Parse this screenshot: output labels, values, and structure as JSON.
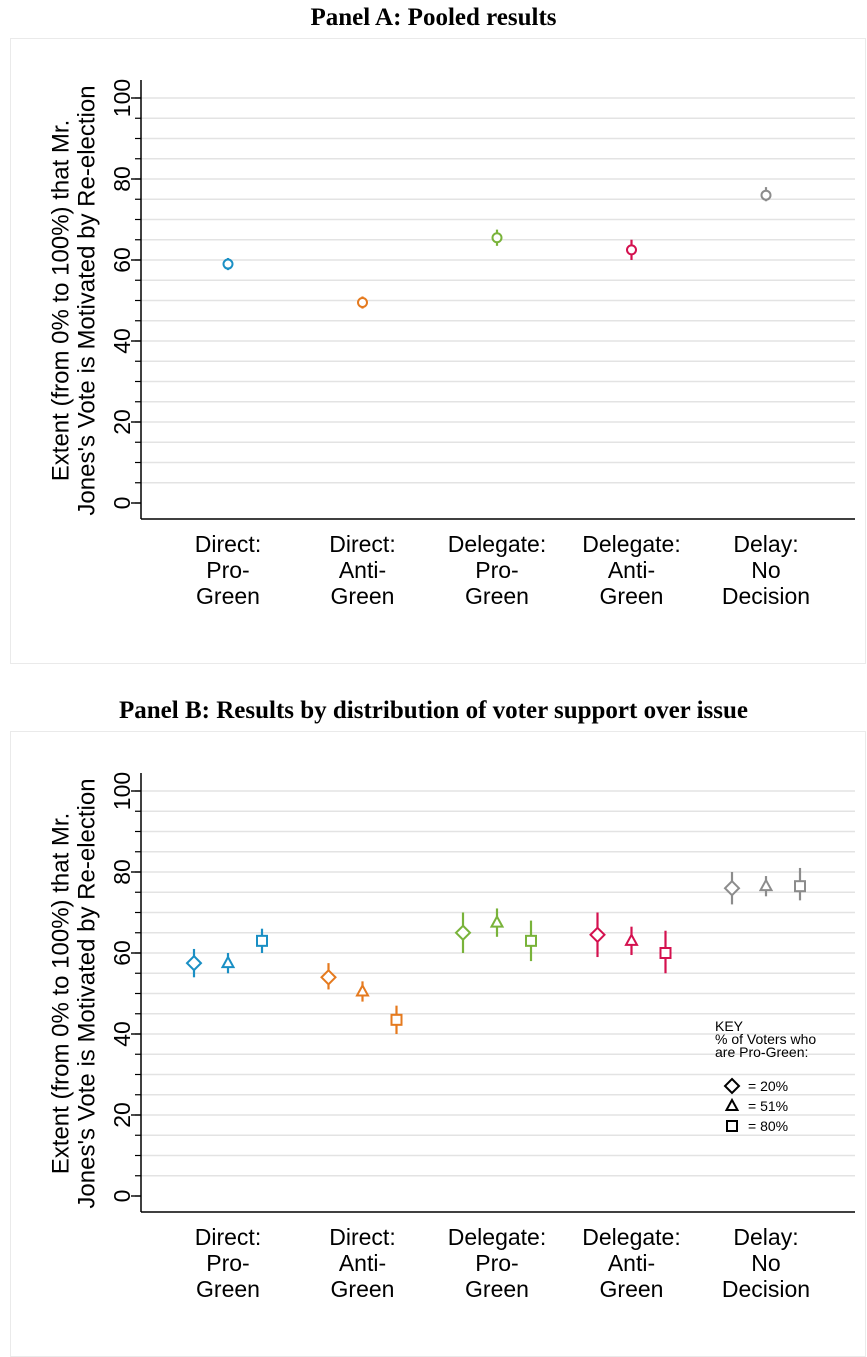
{
  "chart_data": [
    {
      "type": "scatter",
      "title": "Panel A: Pooled results",
      "ylabel_lines": [
        "Extent (from 0% to 100%) that Mr.",
        "Jones's Vote is Motivated by Re-election"
      ],
      "ylim": [
        0,
        100
      ],
      "yticks": [
        0,
        20,
        40,
        60,
        80,
        100
      ],
      "grid": true,
      "categories": [
        [
          "Direct:",
          "Pro-",
          "Green"
        ],
        [
          "Direct:",
          "Anti-",
          "Green"
        ],
        [
          "Delegate:",
          "Pro-",
          "Green"
        ],
        [
          "Delegate:",
          "Anti-",
          "Green"
        ],
        [
          "Delay:",
          "No",
          "Decision"
        ]
      ],
      "category_colors": [
        "#1a8fc4",
        "#e57a1e",
        "#79b33a",
        "#d4114f",
        "#8c8c8c"
      ],
      "series": [
        {
          "marker": "circle",
          "points": [
            {
              "cat": 0,
              "y": 59,
              "lo": 57.5,
              "hi": 60.5
            },
            {
              "cat": 1,
              "y": 49.5,
              "lo": 48,
              "hi": 51
            },
            {
              "cat": 2,
              "y": 65.5,
              "lo": 63.5,
              "hi": 67.5
            },
            {
              "cat": 3,
              "y": 62.5,
              "lo": 60,
              "hi": 65
            },
            {
              "cat": 4,
              "y": 76,
              "lo": 74.5,
              "hi": 78
            }
          ]
        }
      ]
    },
    {
      "type": "scatter",
      "title": "Panel B: Results by distribution of voter support over issue",
      "ylabel_lines": [
        "Extent (from 0% to 100%) that Mr.",
        "Jones's Vote is Motivated by Re-election"
      ],
      "ylim": [
        0,
        100
      ],
      "yticks": [
        0,
        20,
        40,
        60,
        80,
        100
      ],
      "grid": true,
      "categories": [
        [
          "Direct:",
          "Pro-",
          "Green"
        ],
        [
          "Direct:",
          "Anti-",
          "Green"
        ],
        [
          "Delegate:",
          "Pro-",
          "Green"
        ],
        [
          "Delegate:",
          "Anti-",
          "Green"
        ],
        [
          "Delay:",
          "No",
          "Decision"
        ]
      ],
      "category_colors": [
        "#1a8fc4",
        "#e57a1e",
        "#79b33a",
        "#d4114f",
        "#8c8c8c"
      ],
      "series": [
        {
          "name": "= 20%",
          "marker": "diamond",
          "points": [
            {
              "cat": 0,
              "y": 57.5,
              "lo": 54,
              "hi": 61
            },
            {
              "cat": 1,
              "y": 54,
              "lo": 51,
              "hi": 57.5
            },
            {
              "cat": 2,
              "y": 65,
              "lo": 60,
              "hi": 70
            },
            {
              "cat": 3,
              "y": 64.5,
              "lo": 59,
              "hi": 70
            },
            {
              "cat": 4,
              "y": 76,
              "lo": 72,
              "hi": 80
            }
          ]
        },
        {
          "name": "= 51%",
          "marker": "triangle",
          "points": [
            {
              "cat": 0,
              "y": 57.5,
              "lo": 55,
              "hi": 60
            },
            {
              "cat": 1,
              "y": 50.5,
              "lo": 48,
              "hi": 53
            },
            {
              "cat": 2,
              "y": 67.5,
              "lo": 64,
              "hi": 71
            },
            {
              "cat": 3,
              "y": 63,
              "lo": 59.5,
              "hi": 66.5
            },
            {
              "cat": 4,
              "y": 76.5,
              "lo": 74,
              "hi": 79
            }
          ]
        },
        {
          "name": "= 80%",
          "marker": "square",
          "points": [
            {
              "cat": 0,
              "y": 63,
              "lo": 60,
              "hi": 66
            },
            {
              "cat": 1,
              "y": 43.5,
              "lo": 40,
              "hi": 47
            },
            {
              "cat": 2,
              "y": 63,
              "lo": 58,
              "hi": 68
            },
            {
              "cat": 3,
              "y": 60,
              "lo": 55,
              "hi": 65.5
            },
            {
              "cat": 4,
              "y": 76.5,
              "lo": 73,
              "hi": 81
            }
          ]
        }
      ],
      "legend": {
        "title_lines": [
          "KEY",
          "% of Voters who",
          "are Pro-Green:"
        ],
        "placement": "right"
      }
    }
  ]
}
